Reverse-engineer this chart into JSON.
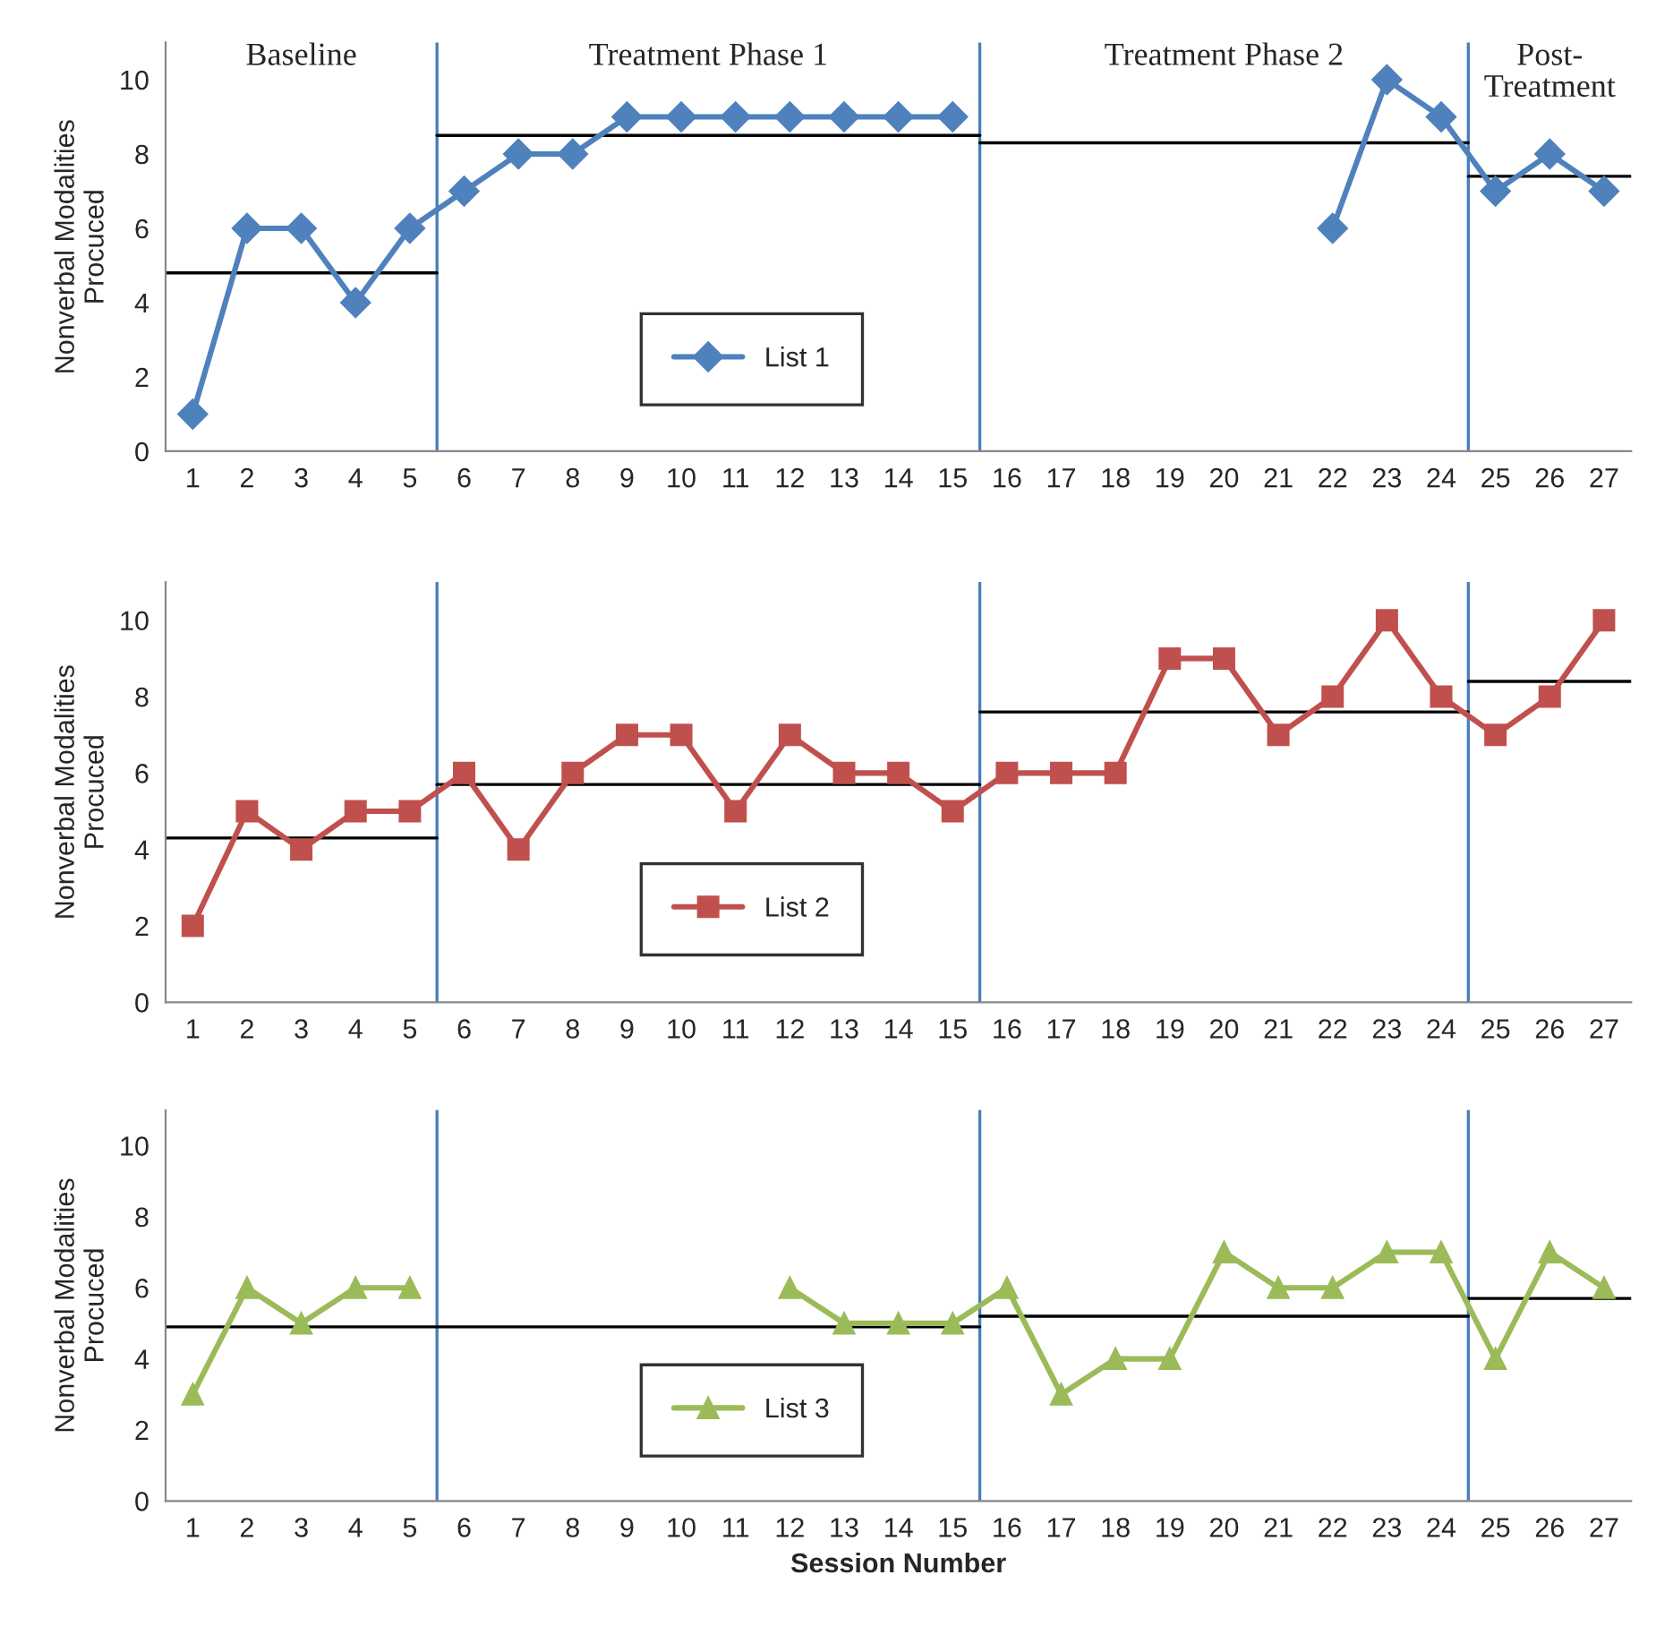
{
  "chart_data": [
    {
      "type": "line",
      "ylabel": "Nonverbal Modalities\nProcuced",
      "x": [
        1,
        2,
        3,
        4,
        5,
        6,
        7,
        8,
        9,
        10,
        11,
        12,
        13,
        14,
        15,
        16,
        17,
        18,
        19,
        20,
        21,
        22,
        23,
        24,
        25,
        26,
        27
      ],
      "xlim": [
        0.5,
        27.5
      ],
      "xticks": [
        1,
        2,
        3,
        4,
        5,
        6,
        7,
        8,
        9,
        10,
        11,
        12,
        13,
        14,
        15,
        16,
        17,
        18,
        19,
        20,
        21,
        22,
        23,
        24,
        25,
        26,
        27
      ],
      "ylim": [
        0,
        11
      ],
      "yticks": [
        0,
        2,
        4,
        6,
        8,
        10
      ],
      "grid": false,
      "legend": "bottom",
      "series": [
        {
          "name": "List 1",
          "color": "#4f81bd",
          "marker": "diamond",
          "values": [
            1,
            6,
            6,
            4,
            6,
            7,
            8,
            8,
            9,
            9,
            9,
            9,
            9,
            9,
            9,
            null,
            null,
            null,
            null,
            null,
            null,
            6,
            10,
            9,
            7,
            8,
            7
          ]
        },
        {
          "type": "line",
          "color": "#000000",
          "marker": "none",
          "x": [
            0.5,
            5.5
          ],
          "values": [
            4.8,
            4.8
          ]
        },
        {
          "type": "line",
          "color": "#000000",
          "marker": "none",
          "x": [
            5.5,
            15.5
          ],
          "values": [
            8.5,
            8.5
          ]
        },
        {
          "type": "line",
          "color": "#000000",
          "marker": "none",
          "x": [
            15.5,
            24.5
          ],
          "values": [
            8.3,
            8.3
          ]
        },
        {
          "type": "line",
          "color": "#000000",
          "marker": "none",
          "x": [
            24.5,
            27.5
          ],
          "values": [
            7.4,
            7.4
          ]
        }
      ],
      "ref_lines": [
        {
          "axis": "x",
          "value": 5.5,
          "color": "#4a7ebb"
        },
        {
          "axis": "x",
          "value": 15.5,
          "color": "#4a7ebb"
        },
        {
          "axis": "x",
          "value": 24.5,
          "color": "#4a7ebb"
        }
      ],
      "annotations": [
        "Baseline",
        "Treatment Phase 1",
        "Treatment Phase 2",
        "Post-\nTreatment"
      ]
    },
    {
      "type": "line",
      "ylabel": "Nonverbal Modalities\nProcuced",
      "x": [
        1,
        2,
        3,
        4,
        5,
        6,
        7,
        8,
        9,
        10,
        11,
        12,
        13,
        14,
        15,
        16,
        17,
        18,
        19,
        20,
        21,
        22,
        23,
        24,
        25,
        26,
        27
      ],
      "xlim": [
        0.5,
        27.5
      ],
      "xticks": [
        1,
        2,
        3,
        4,
        5,
        6,
        7,
        8,
        9,
        10,
        11,
        12,
        13,
        14,
        15,
        16,
        17,
        18,
        19,
        20,
        21,
        22,
        23,
        24,
        25,
        26,
        27
      ],
      "ylim": [
        0,
        11
      ],
      "yticks": [
        0,
        2,
        4,
        6,
        8,
        10
      ],
      "grid": false,
      "legend": "bottom",
      "series": [
        {
          "name": "List 2",
          "color": "#c0504d",
          "marker": "square",
          "values": [
            2,
            5,
            4,
            5,
            5,
            6,
            4,
            6,
            7,
            7,
            5,
            7,
            6,
            6,
            5,
            6,
            6,
            6,
            9,
            9,
            7,
            8,
            10,
            8,
            7,
            8,
            10
          ]
        },
        {
          "type": "line",
          "color": "#000000",
          "marker": "none",
          "x": [
            0.5,
            5.5
          ],
          "values": [
            4.3,
            4.3
          ]
        },
        {
          "type": "line",
          "color": "#000000",
          "marker": "none",
          "x": [
            5.5,
            15.5
          ],
          "values": [
            5.7,
            5.7
          ]
        },
        {
          "type": "line",
          "color": "#000000",
          "marker": "none",
          "x": [
            15.5,
            24.5
          ],
          "values": [
            7.6,
            7.6
          ]
        },
        {
          "type": "line",
          "color": "#000000",
          "marker": "none",
          "x": [
            24.5,
            27.5
          ],
          "values": [
            8.4,
            8.4
          ]
        }
      ],
      "ref_lines": [
        {
          "axis": "x",
          "value": 5.5,
          "color": "#4a7ebb"
        },
        {
          "axis": "x",
          "value": 15.5,
          "color": "#4a7ebb"
        },
        {
          "axis": "x",
          "value": 24.5,
          "color": "#4a7ebb"
        }
      ]
    },
    {
      "type": "line",
      "xlabel": "Session Number",
      "ylabel": "Nonverbal Modalities\nProcuced",
      "x": [
        1,
        2,
        3,
        4,
        5,
        6,
        7,
        8,
        9,
        10,
        11,
        12,
        13,
        14,
        15,
        16,
        17,
        18,
        19,
        20,
        21,
        22,
        23,
        24,
        25,
        26,
        27
      ],
      "xlim": [
        0.5,
        27.5
      ],
      "xticks": [
        1,
        2,
        3,
        4,
        5,
        6,
        7,
        8,
        9,
        10,
        11,
        12,
        13,
        14,
        15,
        16,
        17,
        18,
        19,
        20,
        21,
        22,
        23,
        24,
        25,
        26,
        27
      ],
      "ylim": [
        0,
        11
      ],
      "yticks": [
        0,
        2,
        4,
        6,
        8,
        10
      ],
      "grid": false,
      "legend": "bottom",
      "series": [
        {
          "name": "List 3",
          "color": "#9bbb59",
          "marker": "triangle",
          "values": [
            3,
            6,
            5,
            6,
            6,
            null,
            null,
            null,
            null,
            null,
            null,
            6,
            5,
            5,
            5,
            6,
            3,
            4,
            4,
            7,
            6,
            6,
            7,
            7,
            4,
            7,
            6
          ]
        },
        {
          "type": "line",
          "color": "#000000",
          "marker": "none",
          "x": [
            0.5,
            15.5
          ],
          "values": [
            4.9,
            4.9
          ]
        },
        {
          "type": "line",
          "color": "#000000",
          "marker": "none",
          "x": [
            15.5,
            24.5
          ],
          "values": [
            5.2,
            5.2
          ]
        },
        {
          "type": "line",
          "color": "#000000",
          "marker": "none",
          "x": [
            24.5,
            27.5
          ],
          "values": [
            5.7,
            5.7
          ]
        }
      ],
      "ref_lines": [
        {
          "axis": "x",
          "value": 5.5,
          "color": "#4a7ebb"
        },
        {
          "axis": "x",
          "value": 15.5,
          "color": "#4a7ebb"
        },
        {
          "axis": "x",
          "value": 24.5,
          "color": "#4a7ebb"
        }
      ]
    }
  ]
}
